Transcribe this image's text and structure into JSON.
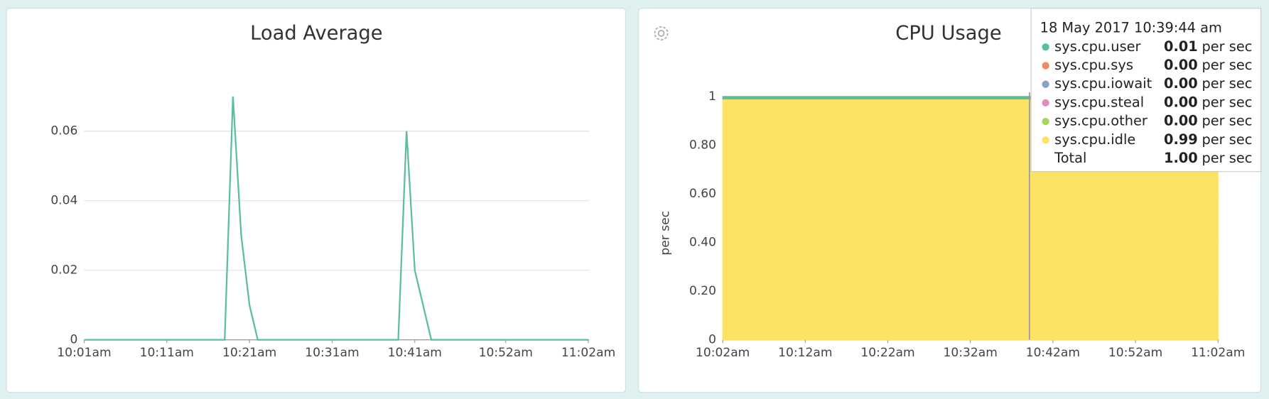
{
  "chart_data": [
    {
      "type": "line",
      "title": "Load Average",
      "x": [
        "10:01am",
        "10:18am",
        "10:19am",
        "10:20am",
        "10:21am",
        "10:22am",
        "10:39am",
        "10:40am",
        "10:41am",
        "10:43am",
        "11:02am"
      ],
      "values": [
        0,
        0,
        0.07,
        0.03,
        0.01,
        0,
        0,
        0.06,
        0.02,
        0,
        0
      ],
      "color": "#5cbf9a",
      "xlim": [
        "10:01am",
        "11:02am"
      ],
      "xticks": [
        "10:01am",
        "10:11am",
        "10:21am",
        "10:31am",
        "10:41am",
        "10:52am",
        "11:02am"
      ],
      "ylim": [
        0,
        0.07
      ],
      "yticks": [
        0,
        0.02,
        0.04,
        0.06
      ],
      "grid": true
    },
    {
      "type": "stacked-area",
      "title": "CPU Usage",
      "y_label": "per sec",
      "x": [
        "10:02am",
        "11:02am"
      ],
      "series": [
        {
          "name": "sys.cpu.user",
          "color": "#5cbf9a",
          "values": [
            0.01,
            0.01
          ]
        },
        {
          "name": "sys.cpu.sys",
          "color": "#f08a5d",
          "values": [
            0,
            0
          ]
        },
        {
          "name": "sys.cpu.iowait",
          "color": "#8da0cb",
          "values": [
            0,
            0
          ]
        },
        {
          "name": "sys.cpu.steal",
          "color": "#e78ac3",
          "values": [
            0,
            0
          ]
        },
        {
          "name": "sys.cpu.other",
          "color": "#a6d854",
          "values": [
            0,
            0
          ]
        },
        {
          "name": "sys.cpu.idle",
          "color": "#fde264",
          "values": [
            0.99,
            0.99
          ]
        }
      ],
      "xlim": [
        "10:02am",
        "11:02am"
      ],
      "xticks": [
        "10:02am",
        "10:12am",
        "10:22am",
        "10:32am",
        "10:42am",
        "10:52am",
        "11:02am"
      ],
      "ylim": [
        0,
        1
      ],
      "yticks": [
        0,
        {
          "value": 0.2,
          "label": "0.20"
        },
        {
          "value": 0.4,
          "label": "0.40"
        },
        {
          "value": 0.6,
          "label": "0.60"
        },
        {
          "value": 0.8,
          "label": "0.80"
        },
        1
      ],
      "grid": true,
      "tooltip": {
        "time": "18 May 2017 10:39:44 am",
        "values": [
          "0.01",
          "0.00",
          "0.00",
          "0.00",
          "0.00",
          "0.99"
        ],
        "unit": "per sec",
        "total_label": "Total",
        "total": "1.00"
      }
    }
  ]
}
